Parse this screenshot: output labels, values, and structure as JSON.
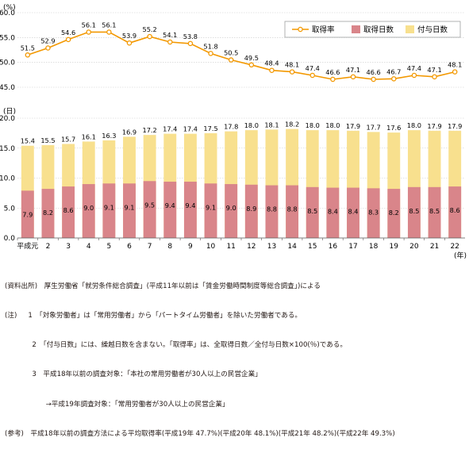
{
  "chart_data": [
    {
      "type": "line",
      "ylabel": "(%)",
      "ylim": [
        45.0,
        60.0
      ],
      "yticks": [
        "60.0",
        "55.0",
        "50.0",
        "45.0"
      ],
      "categories": [
        "平成元",
        "2",
        "3",
        "4",
        "5",
        "6",
        "7",
        "8",
        "9",
        "10",
        "11",
        "12",
        "13",
        "14",
        "15",
        "16",
        "17",
        "18",
        "19",
        "20",
        "21",
        "22"
      ],
      "series": [
        {
          "name": "取得率",
          "color": "#f39800",
          "values": [
            51.5,
            52.9,
            54.6,
            56.1,
            56.1,
            53.9,
            55.2,
            54.1,
            53.8,
            51.8,
            50.5,
            49.5,
            48.4,
            48.1,
            47.4,
            46.6,
            47.1,
            46.6,
            46.7,
            47.4,
            47.1,
            48.1
          ]
        }
      ],
      "grid": true,
      "legend_placement": "top-right"
    },
    {
      "type": "bar",
      "ylabel": "(日)",
      "xlabel": "(年)",
      "ylim": [
        0,
        20.0
      ],
      "yticks": [
        "20.0",
        "15.0",
        "10.0",
        "5.0",
        "0.0"
      ],
      "categories": [
        "平成元",
        "2",
        "3",
        "4",
        "5",
        "6",
        "7",
        "8",
        "9",
        "10",
        "11",
        "12",
        "13",
        "14",
        "15",
        "16",
        "17",
        "18",
        "19",
        "20",
        "21",
        "22"
      ],
      "series": [
        {
          "name": "取得日数",
          "color": "#d9858a",
          "values": [
            7.9,
            8.2,
            8.6,
            9.0,
            9.1,
            9.1,
            9.5,
            9.4,
            9.4,
            9.1,
            9.0,
            8.9,
            8.8,
            8.8,
            8.5,
            8.4,
            8.4,
            8.3,
            8.2,
            8.5,
            8.5,
            8.6
          ]
        },
        {
          "name": "付与日数",
          "color": "#f8e08e",
          "values": [
            15.4,
            15.5,
            15.7,
            16.1,
            16.3,
            16.9,
            17.2,
            17.4,
            17.4,
            17.5,
            17.8,
            18.0,
            18.1,
            18.2,
            18.0,
            18.0,
            17.9,
            17.7,
            17.6,
            18.0,
            17.9,
            17.9
          ]
        }
      ],
      "grid": true
    }
  ],
  "notes": [
    "(資料出所)　厚生労働省「就労条件総合調査」(平成11年以前は「賃金労働時間制度等総合調査」)による",
    "(注)　  1　「対象労働者」は「常用労働者」から「パートタイム労働者」を除いた労働者である。",
    "　　　　2　「付与日数」には、繰越日数を含まない。「取得率」は、全取得日数／全付与日数×100(％)である。",
    "　　　　3　平成18年以前の調査対象：「本社の常用労働者が30人以上の民営企業」",
    "　　　　　　→平成19年調査対象：「常用労働者が30人以上の民営企業」",
    "(参考)　平成18年以前の調査方法による平均取得率(平成19年 47.7%)(平成20年 48.1%)(平成21年 48.2%)(平成22年 49.3%)"
  ]
}
